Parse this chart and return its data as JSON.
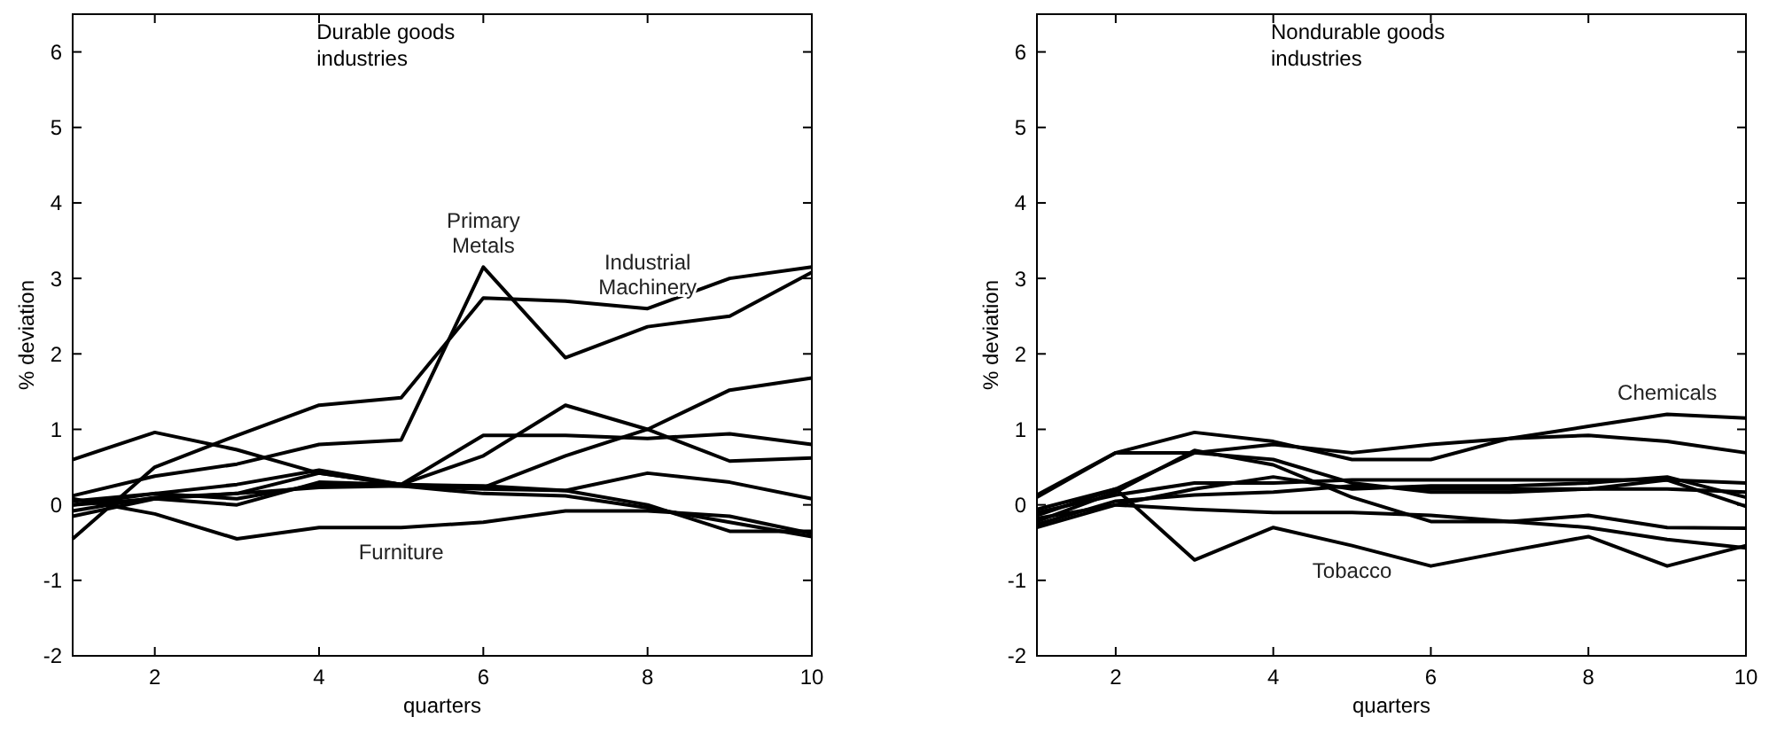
{
  "chart_data": [
    {
      "type": "line",
      "title": "Durable goods\nindustries",
      "xlabel": "quarters",
      "ylabel": "% deviation",
      "x": [
        1,
        2,
        3,
        4,
        5,
        6,
        7,
        8,
        9,
        10
      ],
      "xlim": [
        1,
        10
      ],
      "ylim": [
        -2,
        6.5
      ],
      "xticks": [
        2,
        4,
        6,
        8,
        10
      ],
      "yticks": [
        -2,
        -1,
        0,
        1,
        2,
        3,
        4,
        5,
        6
      ],
      "grid": false,
      "marker": "none",
      "line_style": "solid",
      "annotations": [
        {
          "text": "Primary\nMetals",
          "x": 6,
          "y": 3.15
        },
        {
          "text": "Industrial\nMachinery",
          "x": 8,
          "y": 2.6
        },
        {
          "text": "Furniture",
          "x": 5,
          "y": -0.3
        }
      ],
      "series": [
        {
          "color": "#000000",
          "values": [
            -0.45,
            0.5,
            0.92,
            1.32,
            1.42,
            2.74,
            2.7,
            2.6,
            3.0,
            3.15
          ]
        },
        {
          "color": "#000000",
          "values": [
            0.12,
            0.38,
            0.54,
            0.8,
            0.86,
            3.15,
            1.95,
            2.36,
            2.5,
            3.08
          ]
        },
        {
          "color": "#000000",
          "values": [
            0.6,
            0.96,
            0.73,
            0.42,
            0.27,
            0.25,
            0.19,
            0.42,
            0.3,
            0.08
          ]
        },
        {
          "color": "#000000",
          "values": [
            0,
            0.08,
            0.15,
            0.42,
            0.27,
            0.65,
            1.32,
            1.0,
            0.58,
            0.62
          ]
        },
        {
          "color": "#000000",
          "values": [
            -0.15,
            0.08,
            0,
            0.3,
            0.27,
            0.23,
            0.65,
            1.0,
            1.52,
            1.68
          ]
        },
        {
          "color": "#000000",
          "values": [
            0.05,
            0.15,
            0.27,
            0.46,
            0.27,
            0.92,
            0.92,
            0.88,
            0.94,
            0.8
          ]
        },
        {
          "color": "#000000",
          "values": [
            0.08,
            -0.12,
            -0.45,
            -0.3,
            -0.3,
            -0.23,
            -0.08,
            -0.08,
            -0.15,
            -0.38
          ]
        },
        {
          "color": "#000000",
          "values": [
            -0.08,
            0.1,
            0.15,
            0.23,
            0.25,
            0.21,
            0.19,
            0,
            -0.35,
            -0.35
          ]
        },
        {
          "color": "#000000",
          "values": [
            0,
            0.15,
            0.08,
            0.27,
            0.25,
            0.15,
            0.12,
            -0.04,
            -0.23,
            -0.42
          ]
        }
      ]
    },
    {
      "type": "line",
      "title": "Nondurable goods\nindustries",
      "xlabel": "quarters",
      "ylabel": "% deviation",
      "x": [
        1,
        2,
        3,
        4,
        5,
        6,
        7,
        8,
        9,
        10
      ],
      "xlim": [
        1,
        10
      ],
      "ylim": [
        -2,
        6.5
      ],
      "xticks": [
        2,
        4,
        6,
        8,
        10
      ],
      "yticks": [
        -2,
        -1,
        0,
        1,
        2,
        3,
        4,
        5,
        6
      ],
      "grid": false,
      "marker": "none",
      "line_style": "solid",
      "annotations": [
        {
          "text": "Tobacco",
          "x": 5,
          "y": -0.54
        },
        {
          "text": "Chemicals",
          "x": 9,
          "y": 1.2
        }
      ],
      "series": [
        {
          "color": "#000000",
          "values": [
            0.13,
            0.69,
            0.96,
            0.84,
            0.6,
            0.6,
            0.88,
            1.04,
            1.2,
            1.15
          ]
        },
        {
          "color": "#000000",
          "values": [
            0.1,
            0.69,
            0.69,
            0.8,
            0.69,
            0.8,
            0.88,
            0.92,
            0.84,
            0.69
          ]
        },
        {
          "color": "#000000",
          "values": [
            -0.14,
            0.21,
            -0.73,
            -0.3,
            -0.54,
            -0.81,
            -0.61,
            -0.42,
            -0.81,
            -0.54
          ]
        },
        {
          "color": "#000000",
          "values": [
            -0.3,
            0,
            -0.06,
            -0.1,
            -0.1,
            -0.14,
            -0.22,
            -0.14,
            -0.3,
            -0.31
          ]
        },
        {
          "color": "#000000",
          "values": [
            -0.22,
            0.17,
            0.72,
            0.53,
            0.1,
            -0.22,
            -0.22,
            -0.3,
            -0.46,
            -0.57
          ]
        },
        {
          "color": "#000000",
          "values": [
            -0.06,
            0.21,
            0.69,
            0.6,
            0.29,
            0.17,
            0.17,
            0.21,
            0.33,
            -0.02
          ]
        },
        {
          "color": "#000000",
          "values": [
            -0.1,
            0.13,
            0.29,
            0.29,
            0.33,
            0.33,
            0.33,
            0.33,
            0.33,
            0.29
          ]
        },
        {
          "color": "#000000",
          "values": [
            -0.18,
            0,
            0.21,
            0.37,
            0.21,
            0.25,
            0.25,
            0.29,
            0.37,
            0.1
          ]
        },
        {
          "color": "#000000",
          "values": [
            -0.26,
            0.05,
            0.13,
            0.17,
            0.25,
            0.21,
            0.21,
            0.21,
            0.21,
            0.17
          ]
        }
      ]
    }
  ]
}
